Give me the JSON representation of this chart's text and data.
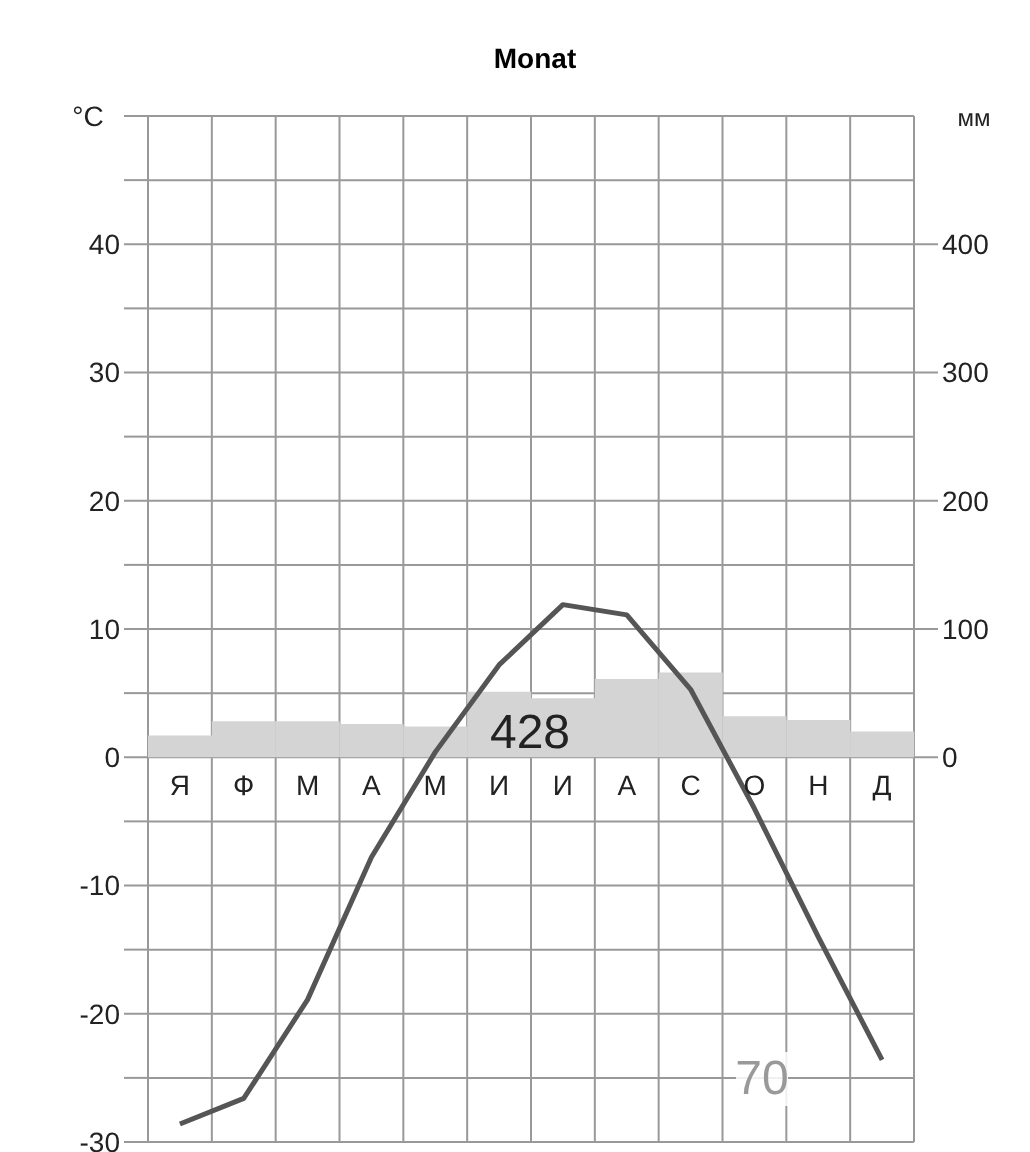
{
  "chart_data": {
    "type": "bar",
    "title": "Monat",
    "ylabel": "°C",
    "y2label": "мм",
    "categories": [
      "Я",
      "Ф",
      "М",
      "А",
      "М",
      "И",
      "И",
      "А",
      "С",
      "О",
      "Н",
      "Д"
    ],
    "series": [
      {
        "axis": "y2",
        "color": "#d4d4d4",
        "values": [
          17,
          28,
          28,
          26,
          24,
          51,
          46,
          61,
          66,
          32,
          29,
          20
        ]
      },
      {
        "type": "line",
        "color": "#555555",
        "values": [
          -28.6,
          -26.6,
          -18.9,
          -7.8,
          0.4,
          7.2,
          11.9,
          11.1,
          5.3,
          -4,
          -14,
          -23.6
        ]
      }
    ],
    "ylim": [
      -30,
      50
    ],
    "yticks": [
      -30,
      {
        "value": -25,
        "label": null
      },
      -20,
      {
        "value": -15,
        "label": null
      },
      -10,
      {
        "value": -5,
        "label": null
      },
      0,
      {
        "value": 5,
        "label": null
      },
      10,
      {
        "value": 15,
        "label": null
      },
      20,
      {
        "value": 25,
        "label": null
      },
      30,
      {
        "value": 35,
        "label": null
      },
      40,
      {
        "value": 45,
        "label": null
      },
      {
        "value": 50,
        "label": null
      }
    ],
    "y2lim": [
      -300,
      500
    ],
    "y2ticks": [
      0,
      100,
      200,
      300,
      400
    ],
    "grid": true,
    "marker": "none",
    "annotations": [
      "428",
      "70"
    ]
  }
}
